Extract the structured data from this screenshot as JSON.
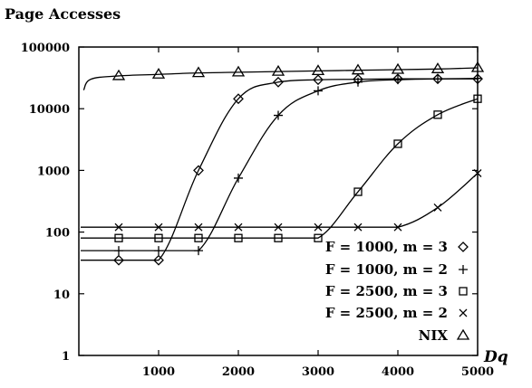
{
  "chart_data": {
    "type": "line",
    "ylabel": "Page Accesses",
    "xlabel": "Dq",
    "yscale": "log",
    "xlim": [
      0,
      5000
    ],
    "ylim": [
      1,
      100000
    ],
    "xticks": [
      "1000",
      "2000",
      "3000",
      "4000",
      "5000"
    ],
    "yticks": [
      "1",
      "10",
      "100",
      "1000",
      "10000",
      "100000"
    ],
    "legend_position": "bottom-right",
    "x": [
      500,
      1000,
      1500,
      2000,
      2500,
      3000,
      3500,
      4000,
      4500,
      5000
    ],
    "series": [
      {
        "name": "F = 1000, m = 3",
        "marker": "diamond",
        "values": [
          35,
          35,
          1000,
          14500,
          27000,
          29500,
          30000,
          30500,
          30500,
          30500
        ]
      },
      {
        "name": "F = 1000, m = 2",
        "marker": "plus",
        "values": [
          50,
          50,
          50,
          750,
          7800,
          19500,
          27000,
          29500,
          30500,
          31000
        ]
      },
      {
        "name": "F = 2500, m = 3",
        "marker": "square",
        "values": [
          80,
          80,
          80,
          80,
          80,
          80,
          450,
          2700,
          8000,
          14500
        ]
      },
      {
        "name": "F = 2500, m = 2",
        "marker": "cross",
        "values": [
          120,
          120,
          120,
          120,
          120,
          120,
          120,
          120,
          250,
          900
        ]
      },
      {
        "name": "NIX",
        "marker": "triangle",
        "values": [
          34000,
          36000,
          38000,
          39000,
          40000,
          41000,
          42000,
          43000,
          44000,
          46000
        ]
      }
    ]
  }
}
